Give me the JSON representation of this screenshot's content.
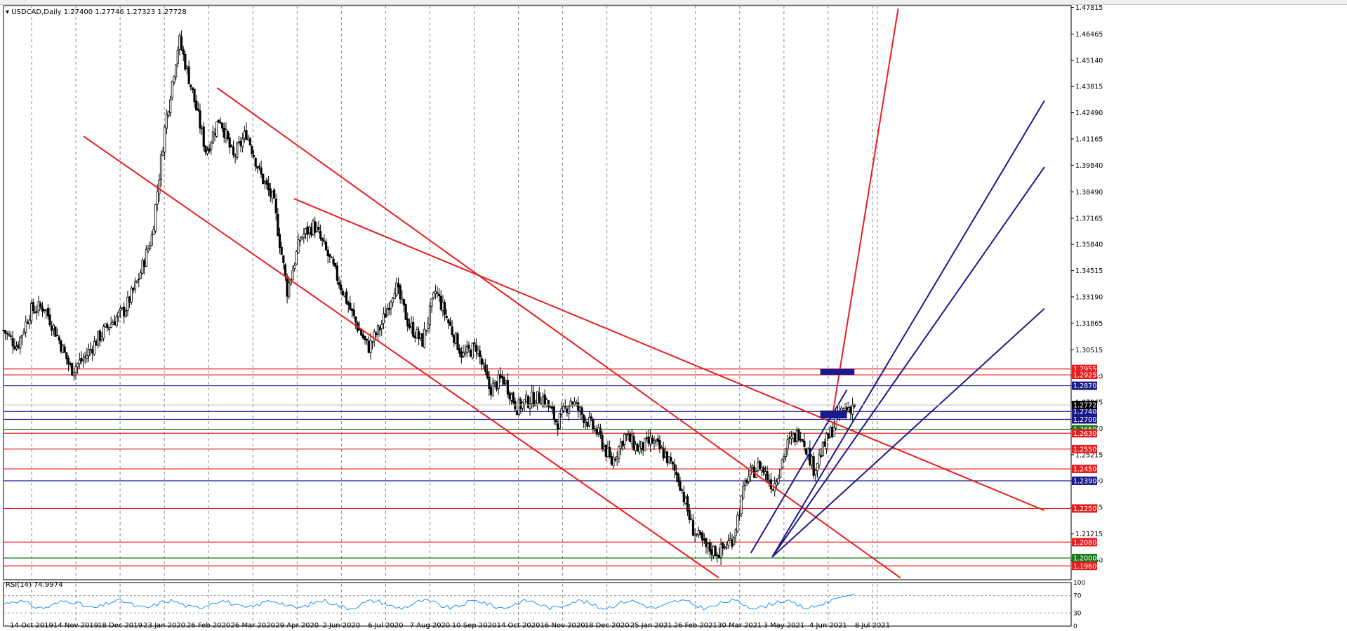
{
  "chart_data": {
    "type": "candlestick",
    "symbol_label": "USDCAD,Daily",
    "ohlc_text": "1.27400 1.27746 1.27323 1.27728",
    "last_price": "1.27728",
    "yrange": [
      1.189,
      1.479
    ],
    "y_ticks": [
      "1.47815",
      "1.46465",
      "1.45140",
      "1.43815",
      "1.42490",
      "1.41165",
      "1.39840",
      "1.38490",
      "1.37165",
      "1.35840",
      "1.34515",
      "1.33190",
      "1.31865",
      "1.30515",
      "1.29190",
      "1.27865",
      "1.26540",
      "1.25215",
      "1.23890",
      "1.22565",
      "1.21215",
      "1.19890"
    ],
    "x_ticks": [
      "14 Oct 2019",
      "14 Nov 2019",
      "18 Dec 2019",
      "23 Jan 2020",
      "26 Feb 2020",
      "26 Mar 2020",
      "29 Apr 2020",
      "2 Jun 2020",
      "6 Jul 2020",
      "7 Aug 2020",
      "10 Sep 2020",
      "14 Oct 2020",
      "16 Nov 2020",
      "18 Dec 2020",
      "25 Jan 2021",
      "26 Feb 2021",
      "30 Mar 2021",
      "3 May 2021",
      "4 Jun 2021",
      "8 Jul 2021"
    ],
    "price_path": [
      1.315,
      1.307,
      1.325,
      1.327,
      1.312,
      1.295,
      1.301,
      1.311,
      1.319,
      1.3255,
      1.341,
      1.363,
      1.42,
      1.462,
      1.435,
      1.405,
      1.423,
      1.402,
      1.415,
      1.394,
      1.38,
      1.335,
      1.362,
      1.368,
      1.353,
      1.337,
      1.32,
      1.306,
      1.318,
      1.338,
      1.318,
      1.309,
      1.335,
      1.318,
      1.302,
      1.307,
      1.285,
      1.291,
      1.276,
      1.28,
      1.281,
      1.268,
      1.28,
      1.271,
      1.263,
      1.248,
      1.262,
      1.255,
      1.259,
      1.252,
      1.24,
      1.215,
      1.205,
      1.203,
      1.21,
      1.24,
      1.247,
      1.236,
      1.257,
      1.264,
      1.245,
      1.26,
      1.274,
      1.2773
    ],
    "horizontal_levels": [
      {
        "label": "1.29550",
        "value": 1.2955,
        "color": "#e81e1e"
      },
      {
        "label": "1.29250",
        "value": 1.2925,
        "color": "#e81e1e"
      },
      {
        "label": "1.28700",
        "value": 1.287,
        "color": "#1a1a8c"
      },
      {
        "label": "1.27400",
        "value": 1.274,
        "color": "#1a1a8c"
      },
      {
        "label": "1.27000",
        "value": 1.27,
        "color": "#1a1a8c"
      },
      {
        "label": "1.26500",
        "value": 1.265,
        "color": "#187a18"
      },
      {
        "label": "1.26300",
        "value": 1.263,
        "color": "#e81e1e"
      },
      {
        "label": "1.25500",
        "value": 1.255,
        "color": "#e81e1e"
      },
      {
        "label": "1.24500",
        "value": 1.245,
        "color": "#e81e1e"
      },
      {
        "label": "1.23900",
        "value": 1.239,
        "color": "#1a1a8c"
      },
      {
        "label": "1.22500",
        "value": 1.225,
        "color": "#e81e1e"
      },
      {
        "label": "1.20800",
        "value": 1.208,
        "color": "#e81e1e"
      },
      {
        "label": "1.20000",
        "value": 1.2,
        "color": "#187a18"
      },
      {
        "label": "1.19600",
        "value": 1.196,
        "color": "#e81e1e"
      }
    ],
    "trend_lines": [
      {
        "color": "#e81e1e",
        "x1": 0.075,
        "y1": 1.413,
        "x2": 0.67,
        "y2": 1.19
      },
      {
        "color": "#e81e1e",
        "x1": 0.2,
        "y1": 1.4375,
        "x2": 0.84,
        "y2": 1.19
      },
      {
        "color": "#e81e1e",
        "x1": 0.272,
        "y1": 1.3815,
        "x2": 0.975,
        "y2": 1.224
      },
      {
        "color": "#e81e1e",
        "x1": 0.776,
        "y1": 1.2705,
        "x2": 0.838,
        "y2": 1.4775
      },
      {
        "color": "#1a1a8c",
        "x1": 0.7,
        "y1": 1.2025,
        "x2": 0.79,
        "y2": 1.285
      },
      {
        "color": "#1a1a8c",
        "x1": 0.72,
        "y1": 1.2005,
        "x2": 0.975,
        "y2": 1.431
      },
      {
        "color": "#1a1a8c",
        "x1": 0.72,
        "y1": 1.2005,
        "x2": 0.975,
        "y2": 1.3975
      },
      {
        "color": "#1a1a8c",
        "x1": 0.72,
        "y1": 1.2005,
        "x2": 0.975,
        "y2": 1.326
      }
    ],
    "boxes": [
      {
        "color": "#1a1a8c",
        "x1": 0.765,
        "x2": 0.797,
        "y1": 1.2955,
        "y2": 1.2925
      },
      {
        "color": "#1a1a8c",
        "x1": 0.765,
        "x2": 0.79,
        "y1": 1.2745,
        "y2": 1.2705
      }
    ],
    "rsi": {
      "label": "RSI(14) 74.9974",
      "value": 74.9974,
      "ticks": [
        "100",
        "70",
        "30",
        "0"
      ]
    }
  }
}
